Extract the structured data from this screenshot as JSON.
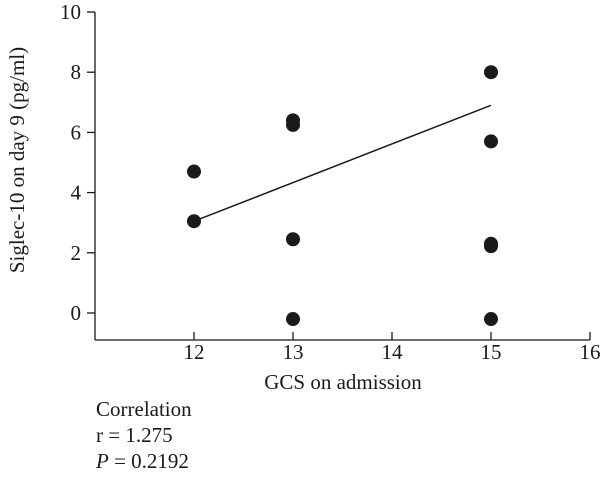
{
  "chart_data": {
    "type": "scatter",
    "title": "",
    "xlabel": "GCS on admission",
    "ylabel": "Siglec-10 on day 9 (pg/ml)",
    "xlim": [
      11,
      16
    ],
    "ylim": [
      0,
      10
    ],
    "x_ticks": [
      12,
      13,
      14,
      15,
      16
    ],
    "y_ticks": [
      0,
      2,
      4,
      6,
      8,
      10
    ],
    "grid": false,
    "points": [
      {
        "x": 12,
        "y": 4.7
      },
      {
        "x": 12,
        "y": 3.05
      },
      {
        "x": 13,
        "y": 6.4
      },
      {
        "x": 13,
        "y": 6.25
      },
      {
        "x": 13,
        "y": 2.45
      },
      {
        "x": 13,
        "y": -0.2
      },
      {
        "x": 15,
        "y": 8.0
      },
      {
        "x": 15,
        "y": 5.7
      },
      {
        "x": 15,
        "y": 2.3
      },
      {
        "x": 15,
        "y": 2.22
      },
      {
        "x": 15,
        "y": -0.2
      }
    ],
    "fit_line": {
      "x": [
        12,
        15
      ],
      "y": [
        3.05,
        6.9
      ]
    },
    "marker_color": "#1a1a1a",
    "line_color": "#1a1a1a"
  },
  "stats": {
    "heading": "Correlation",
    "r_text": "r = 1.275",
    "p_symbol": "P",
    "p_value": " = 0.2192"
  }
}
